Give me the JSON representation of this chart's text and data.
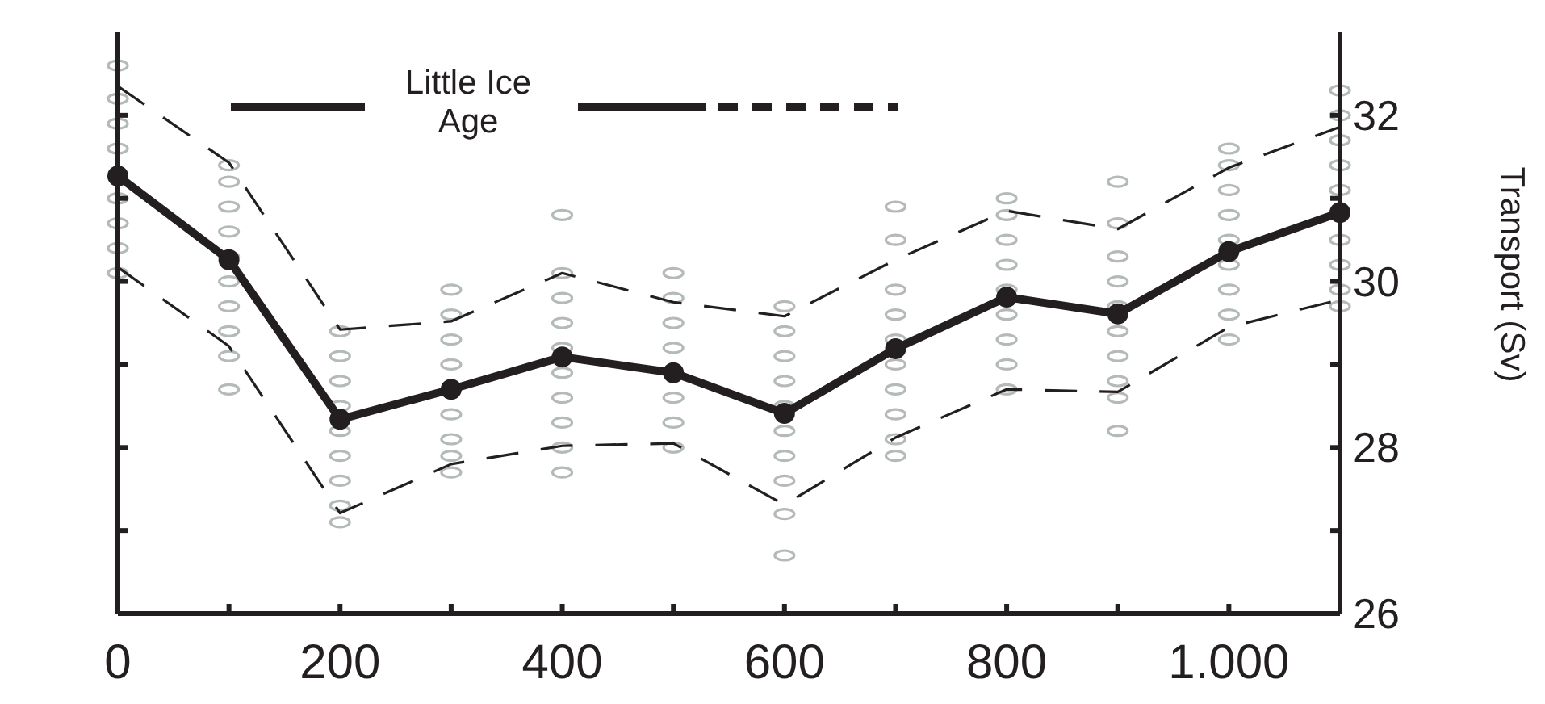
{
  "chart_data": {
    "type": "line",
    "ylabel": "Transport (Sv)",
    "annotations": [
      "Little Ice Age"
    ],
    "xlim": [
      0,
      1100
    ],
    "ylim": [
      26,
      33
    ],
    "xticks": [
      0,
      {
        "value": 100,
        "label": null
      },
      200,
      {
        "value": 300,
        "label": null
      },
      400,
      {
        "value": 500,
        "label": null
      },
      600,
      {
        "value": 700,
        "label": null
      },
      800,
      {
        "value": 900,
        "label": null
      },
      {
        "value": 1000,
        "label": "1.000"
      },
      {
        "value": 1100,
        "label": null
      }
    ],
    "yticks": [
      26,
      {
        "value": 27,
        "label": null
      },
      28,
      {
        "value": 29,
        "label": null
      },
      30,
      {
        "value": 31,
        "label": null
      },
      32
    ],
    "series": [
      {
        "type": "scatter",
        "color": "#b4b9b9",
        "marker": "circle",
        "x": [
          0,
          0,
          0,
          0,
          0,
          0,
          0,
          0,
          100,
          100,
          100,
          100,
          100,
          100,
          100,
          100,
          100,
          100,
          200,
          200,
          200,
          200,
          200,
          200,
          200,
          200,
          200,
          300,
          300,
          300,
          300,
          300,
          300,
          300,
          300,
          400,
          400,
          400,
          400,
          400,
          400,
          400,
          400,
          400,
          400,
          500,
          500,
          500,
          500,
          500,
          500,
          500,
          600,
          600,
          600,
          600,
          600,
          600,
          600,
          600,
          600,
          600,
          700,
          700,
          700,
          700,
          700,
          700,
          700,
          700,
          700,
          700,
          800,
          800,
          800,
          800,
          800,
          800,
          800,
          800,
          800,
          900,
          900,
          900,
          900,
          900,
          900,
          900,
          900,
          900,
          900,
          1000,
          1000,
          1000,
          1000,
          1000,
          1000,
          1000,
          1000,
          1000,
          1100,
          1100,
          1100,
          1100,
          1100,
          1100,
          1100,
          1100,
          1100
        ],
        "values": [
          32.6,
          32.2,
          31.9,
          31.6,
          31.0,
          30.7,
          30.4,
          30.1,
          31.4,
          31.2,
          30.9,
          30.6,
          30.3,
          30.0,
          29.7,
          29.4,
          29.1,
          28.7,
          29.4,
          29.1,
          28.8,
          28.5,
          28.2,
          27.9,
          27.6,
          27.3,
          27.1,
          29.9,
          29.6,
          29.3,
          29.0,
          28.4,
          28.1,
          27.9,
          27.7,
          30.8,
          30.1,
          29.8,
          29.5,
          29.2,
          28.9,
          28.6,
          28.3,
          28.0,
          27.7,
          30.1,
          29.8,
          29.5,
          29.2,
          28.6,
          28.3,
          28.0,
          29.7,
          29.4,
          29.1,
          28.8,
          28.5,
          28.2,
          27.9,
          27.6,
          27.2,
          26.7,
          30.9,
          30.5,
          29.9,
          29.6,
          29.3,
          29.0,
          28.7,
          28.4,
          28.1,
          27.9,
          31.0,
          30.8,
          30.5,
          30.2,
          29.9,
          29.6,
          29.3,
          29.0,
          28.7,
          31.2,
          30.7,
          30.3,
          30.0,
          29.7,
          29.4,
          29.1,
          28.8,
          28.6,
          28.2,
          31.6,
          31.4,
          31.1,
          30.8,
          30.5,
          30.2,
          29.9,
          29.6,
          29.3,
          32.3,
          32.0,
          31.7,
          31.4,
          31.1,
          30.5,
          30.2,
          29.9,
          29.7
        ]
      },
      {
        "type": "line",
        "color": "#231f20",
        "line_style": "dashed",
        "marker": "none",
        "x": [
          0,
          100,
          200,
          300,
          400,
          500,
          600,
          700,
          800,
          900,
          1000,
          1100
        ],
        "values": [
          32.35,
          31.43,
          29.42,
          29.52,
          30.1,
          29.75,
          29.58,
          30.26,
          30.85,
          30.63,
          31.37,
          31.86
        ]
      },
      {
        "type": "line",
        "color": "#231f20",
        "line_style": "dashed",
        "marker": "none",
        "x": [
          0,
          100,
          200,
          300,
          400,
          500,
          600,
          700,
          800,
          900,
          1000,
          1100
        ],
        "values": [
          30.17,
          29.22,
          27.21,
          27.8,
          28.02,
          28.05,
          27.31,
          28.12,
          28.7,
          28.67,
          29.45,
          29.78
        ]
      },
      {
        "color": "#231f20",
        "line_style": "solid",
        "marker": "circle",
        "x": [
          0,
          100,
          200,
          300,
          400,
          500,
          600,
          700,
          800,
          900,
          1000,
          1100
        ],
        "values": [
          31.27,
          30.26,
          28.34,
          28.7,
          29.09,
          28.9,
          28.41,
          29.19,
          29.81,
          29.61,
          30.36,
          30.83
        ]
      }
    ]
  }
}
